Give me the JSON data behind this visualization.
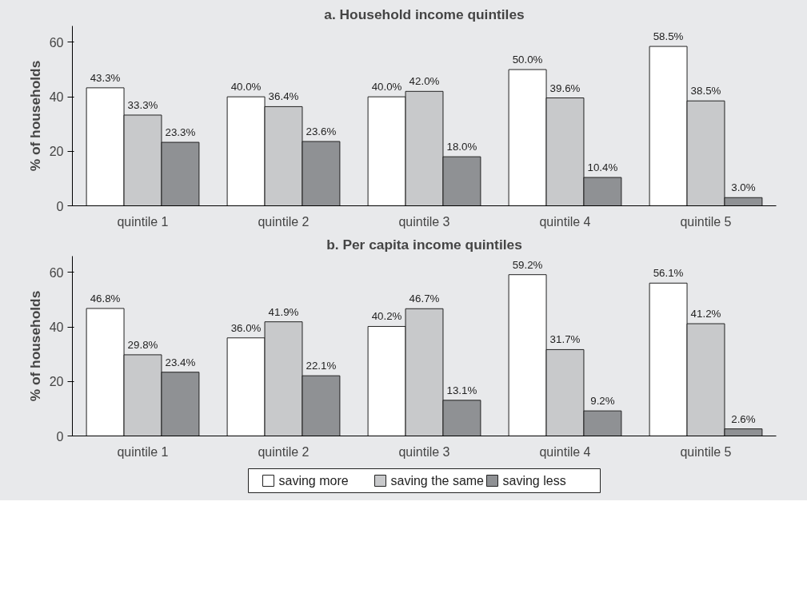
{
  "chart_data": [
    {
      "type": "bar",
      "title": "a. Household income quintiles",
      "ylabel": "% of households",
      "categories": [
        "quintile 1",
        "quintile 2",
        "quintile 3",
        "quintile 4",
        "quintile 5"
      ],
      "ylim": [
        0,
        66
      ],
      "yticks": [
        0,
        20,
        40,
        60
      ],
      "grid": false,
      "legend": false,
      "series": [
        {
          "color": "#ffffff",
          "values": [
            43.3,
            40.0,
            40.0,
            50.0,
            58.5
          ],
          "value_labels": [
            "43.3%",
            "40.0%",
            "40.0%",
            "50.0%",
            "58.5%"
          ]
        },
        {
          "color": "#c8c9cb",
          "values": [
            33.3,
            36.4,
            42.0,
            39.6,
            38.5
          ],
          "value_labels": [
            "33.3%",
            "36.4%",
            "42.0%",
            "39.6%",
            "38.5%"
          ]
        },
        {
          "color": "#8f9194",
          "values": [
            23.3,
            23.6,
            18.0,
            10.4,
            3.0
          ],
          "value_labels": [
            "23.3%",
            "23.6%",
            "18.0%",
            "10.4%",
            "3.0%"
          ]
        }
      ]
    },
    {
      "type": "bar",
      "title": "b. Per capita income quintiles",
      "ylabel": "% of households",
      "categories": [
        "quintile 1",
        "quintile 2",
        "quintile 3",
        "quintile 4",
        "quintile 5"
      ],
      "ylim": [
        0,
        66
      ],
      "yticks": [
        0,
        20,
        40,
        60
      ],
      "grid": false,
      "legend": "bottom",
      "series": [
        {
          "name": "saving more",
          "color": "#ffffff",
          "values": [
            46.8,
            36.0,
            40.2,
            59.2,
            56.1
          ],
          "value_labels": [
            "46.8%",
            "36.0%",
            "40.2%",
            "59.2%",
            "56.1%"
          ]
        },
        {
          "name": "saving the same",
          "color": "#c8c9cb",
          "values": [
            29.8,
            41.9,
            46.7,
            31.7,
            41.2
          ],
          "value_labels": [
            "29.8%",
            "41.9%",
            "46.7%",
            "31.7%",
            "41.2%"
          ]
        },
        {
          "name": "saving less",
          "color": "#8f9194",
          "values": [
            23.4,
            22.1,
            13.1,
            9.2,
            2.6
          ],
          "value_labels": [
            "23.4%",
            "22.1%",
            "13.1%",
            "9.2%",
            "2.6%"
          ]
        }
      ]
    }
  ]
}
